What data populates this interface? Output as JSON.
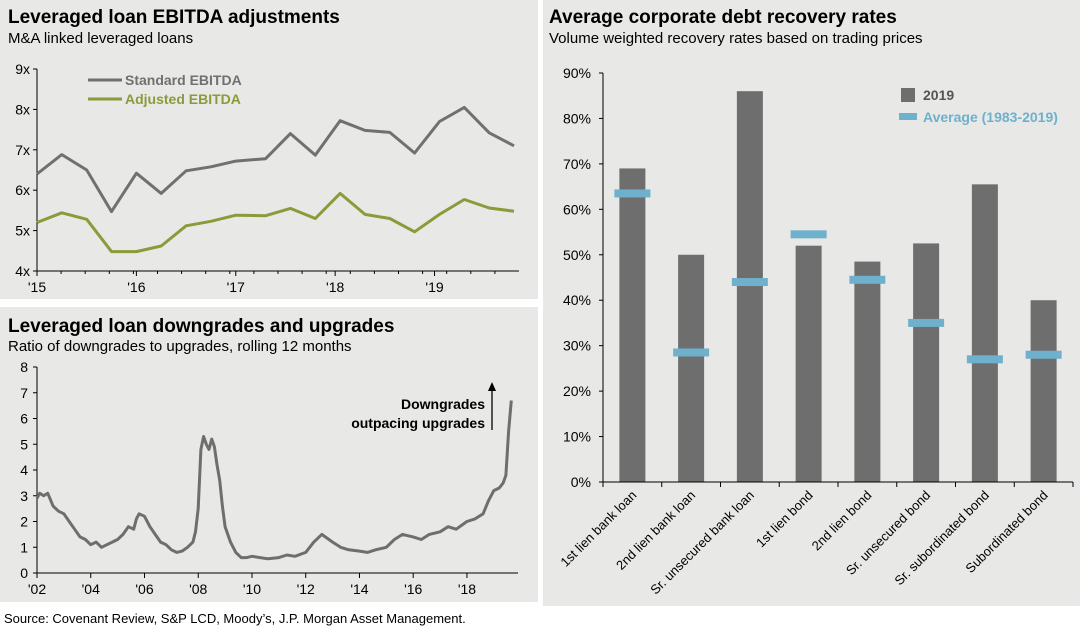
{
  "source": "Source: Covenant Review, S&P LCD, Moody’s, J.P. Morgan Asset Management.",
  "chart_data": [
    {
      "type": "line",
      "title": "Leveraged loan EBITDA adjustments",
      "subtitle": "M&A linked leveraged loans",
      "ylim": [
        4,
        9
      ],
      "yticks": [
        "4x",
        "5x",
        "6x",
        "7x",
        "8x",
        "9x"
      ],
      "xlim": [
        2015,
        2019.85
      ],
      "xticks": [
        {
          "x": 2015,
          "label": "'15"
        },
        {
          "x": 2016,
          "label": "'16"
        },
        {
          "x": 2017,
          "label": "'17"
        },
        {
          "x": 2018,
          "label": "'18"
        },
        {
          "x": 2019,
          "label": "'19"
        }
      ],
      "x": [
        2015.0,
        2015.25,
        2015.5,
        2015.75,
        2016.0,
        2016.25,
        2016.5,
        2016.75,
        2017.0,
        2017.3,
        2017.55,
        2017.8,
        2018.05,
        2018.3,
        2018.55,
        2018.8,
        2019.05,
        2019.3,
        2019.55,
        2019.8
      ],
      "series": [
        {
          "name": "Standard EBITDA",
          "color": "#707070",
          "values": [
            6.4,
            6.88,
            6.5,
            5.47,
            6.42,
            5.92,
            6.48,
            6.58,
            6.72,
            6.78,
            7.4,
            6.87,
            7.72,
            7.48,
            7.43,
            6.92,
            7.7,
            8.05,
            7.42,
            7.1
          ]
        },
        {
          "name": "Adjusted EBITDA",
          "color": "#8c9a3a",
          "values": [
            5.2,
            5.44,
            5.28,
            4.48,
            4.48,
            4.62,
            5.12,
            5.23,
            5.38,
            5.37,
            5.55,
            5.3,
            5.92,
            5.4,
            5.3,
            4.97,
            5.4,
            5.77,
            5.56,
            5.48
          ]
        }
      ]
    },
    {
      "type": "line",
      "title": "Leveraged loan downgrades and upgrades",
      "subtitle": "Ratio of downgrades to upgrades, rolling 12 months",
      "ylim": [
        0,
        8
      ],
      "yticks": [
        "0",
        "1",
        "2",
        "3",
        "4",
        "5",
        "6",
        "7",
        "8"
      ],
      "xlim": [
        2002,
        2019.9
      ],
      "xticks": [
        {
          "x": 2002,
          "label": "'02"
        },
        {
          "x": 2004,
          "label": "'04"
        },
        {
          "x": 2006,
          "label": "'06"
        },
        {
          "x": 2008,
          "label": "'08"
        },
        {
          "x": 2010,
          "label": "'10"
        },
        {
          "x": 2012,
          "label": "'12"
        },
        {
          "x": 2014,
          "label": "'14"
        },
        {
          "x": 2016,
          "label": "'16"
        },
        {
          "x": 2018,
          "label": "'18"
        }
      ],
      "annotation": [
        "Downgrades",
        "outpacing upgrades"
      ],
      "series": [
        {
          "name": "Downgrade/upgrade ratio",
          "color": "#6e6e6e",
          "x": [
            2002.0,
            2002.1,
            2002.25,
            2002.4,
            2002.6,
            2002.8,
            2003.0,
            2003.2,
            2003.4,
            2003.6,
            2003.8,
            2004.0,
            2004.2,
            2004.4,
            2004.6,
            2004.8,
            2005.0,
            2005.2,
            2005.4,
            2005.6,
            2005.7,
            2005.8,
            2006.0,
            2006.2,
            2006.4,
            2006.6,
            2006.8,
            2007.0,
            2007.2,
            2007.4,
            2007.6,
            2007.8,
            2007.9,
            2008.0,
            2008.1,
            2008.2,
            2008.3,
            2008.4,
            2008.5,
            2008.6,
            2008.7,
            2008.8,
            2008.9,
            2009.0,
            2009.2,
            2009.4,
            2009.6,
            2009.8,
            2010.0,
            2010.3,
            2010.6,
            2011.0,
            2011.3,
            2011.6,
            2012.0,
            2012.3,
            2012.6,
            2013.0,
            2013.3,
            2013.6,
            2014.0,
            2014.3,
            2014.6,
            2015.0,
            2015.3,
            2015.6,
            2016.0,
            2016.3,
            2016.6,
            2017.0,
            2017.3,
            2017.6,
            2018.0,
            2018.3,
            2018.6,
            2018.8,
            2019.0,
            2019.2,
            2019.35,
            2019.45,
            2019.55,
            2019.65
          ],
          "values": [
            2.9,
            3.1,
            3.0,
            3.1,
            2.6,
            2.4,
            2.3,
            2.0,
            1.7,
            1.4,
            1.3,
            1.1,
            1.2,
            1.0,
            1.1,
            1.2,
            1.3,
            1.5,
            1.8,
            1.7,
            2.1,
            2.3,
            2.2,
            1.8,
            1.5,
            1.2,
            1.1,
            0.9,
            0.8,
            0.85,
            1.0,
            1.2,
            1.6,
            2.5,
            4.8,
            5.3,
            5.0,
            4.8,
            5.2,
            4.9,
            4.2,
            3.6,
            2.6,
            1.8,
            1.2,
            0.8,
            0.6,
            0.6,
            0.65,
            0.6,
            0.55,
            0.6,
            0.7,
            0.65,
            0.8,
            1.2,
            1.5,
            1.2,
            1.0,
            0.9,
            0.85,
            0.8,
            0.9,
            1.0,
            1.3,
            1.5,
            1.4,
            1.3,
            1.5,
            1.6,
            1.8,
            1.7,
            2.0,
            2.1,
            2.3,
            2.8,
            3.2,
            3.3,
            3.5,
            3.8,
            5.5,
            6.7
          ]
        }
      ]
    },
    {
      "type": "bar",
      "title": "Average corporate debt recovery rates",
      "subtitle": "Volume weighted recovery rates based on trading prices",
      "ylim": [
        0,
        90
      ],
      "yticks": [
        "0%",
        "10%",
        "20%",
        "30%",
        "40%",
        "50%",
        "60%",
        "70%",
        "80%",
        "90%"
      ],
      "categories": [
        "1st lien bank loan",
        "2nd lien bank loan",
        "Sr. unsecured bank loan",
        "1st lien bond",
        "2nd lien bond",
        "Sr. unsecured bond",
        "Sr. subordinated bond",
        "Subordinated bond"
      ],
      "series": [
        {
          "name": "2019",
          "color": "#6e6e6e",
          "values": [
            69,
            50,
            86,
            52,
            48.5,
            52.5,
            65.5,
            40
          ]
        },
        {
          "name": "Average (1983-2019)",
          "color": "#6fb0cd",
          "values": [
            63.5,
            28.5,
            44,
            54.5,
            44.5,
            35,
            27,
            28
          ]
        }
      ]
    }
  ]
}
